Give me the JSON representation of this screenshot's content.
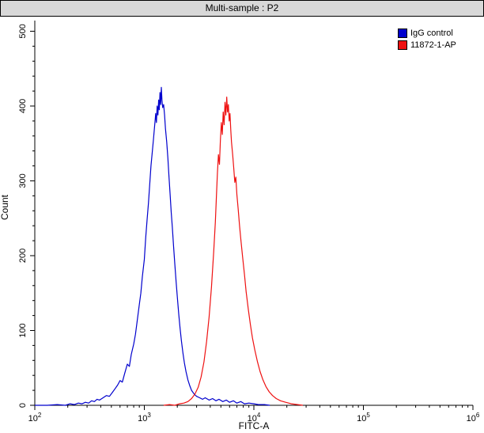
{
  "window": {
    "title": "Multi-sample : P2"
  },
  "chart_data": {
    "type": "line",
    "subtype": "flow-cytometry-histogram",
    "title": "Multi-sample : P2",
    "xlabel": "FITC-A",
    "ylabel": "Count",
    "x_scale": "log",
    "xlim": [
      100,
      1000000
    ],
    "ylim": [
      0,
      510
    ],
    "y_ticks": [
      0,
      100,
      200,
      300,
      400,
      500
    ],
    "y_minor_step": 20,
    "x_tick_exponents": [
      2,
      3,
      4,
      5,
      6
    ],
    "grid": "off",
    "legend_position": "top-right-inside",
    "axis_color": "#000000",
    "series": [
      {
        "name": "IgG control",
        "color": "#0000cd",
        "points": [
          [
            100,
            0
          ],
          [
            130,
            0
          ],
          [
            160,
            1
          ],
          [
            190,
            0
          ],
          [
            210,
            2
          ],
          [
            230,
            1
          ],
          [
            250,
            3
          ],
          [
            270,
            2
          ],
          [
            290,
            4
          ],
          [
            310,
            3
          ],
          [
            330,
            6
          ],
          [
            350,
            5
          ],
          [
            370,
            8
          ],
          [
            390,
            7
          ],
          [
            420,
            10
          ],
          [
            450,
            13
          ],
          [
            480,
            12
          ],
          [
            510,
            17
          ],
          [
            540,
            22
          ],
          [
            570,
            27
          ],
          [
            600,
            33
          ],
          [
            630,
            31
          ],
          [
            660,
            42
          ],
          [
            700,
            55
          ],
          [
            730,
            52
          ],
          [
            760,
            68
          ],
          [
            800,
            82
          ],
          [
            830,
            95
          ],
          [
            860,
            112
          ],
          [
            900,
            135
          ],
          [
            930,
            150
          ],
          [
            960,
            172
          ],
          [
            1000,
            195
          ],
          [
            1030,
            225
          ],
          [
            1060,
            248
          ],
          [
            1090,
            270
          ],
          [
            1120,
            295
          ],
          [
            1150,
            320
          ],
          [
            1180,
            338
          ],
          [
            1210,
            355
          ],
          [
            1240,
            372
          ],
          [
            1270,
            390
          ],
          [
            1290,
            378
          ],
          [
            1310,
            400
          ],
          [
            1330,
            388
          ],
          [
            1350,
            408
          ],
          [
            1370,
            395
          ],
          [
            1390,
            418
          ],
          [
            1410,
            402
          ],
          [
            1430,
            425
          ],
          [
            1450,
            408
          ],
          [
            1470,
            398
          ],
          [
            1500,
            402
          ],
          [
            1530,
            388
          ],
          [
            1560,
            370
          ],
          [
            1600,
            352
          ],
          [
            1640,
            330
          ],
          [
            1680,
            305
          ],
          [
            1720,
            282
          ],
          [
            1760,
            258
          ],
          [
            1800,
            238
          ],
          [
            1850,
            212
          ],
          [
            1900,
            188
          ],
          [
            1950,
            165
          ],
          [
            2000,
            145
          ],
          [
            2060,
            122
          ],
          [
            2120,
            103
          ],
          [
            2180,
            86
          ],
          [
            2250,
            70
          ],
          [
            2320,
            57
          ],
          [
            2400,
            45
          ],
          [
            2500,
            34
          ],
          [
            2600,
            26
          ],
          [
            2700,
            20
          ],
          [
            2850,
            15
          ],
          [
            3000,
            12
          ],
          [
            3200,
            10
          ],
          [
            3400,
            8
          ],
          [
            3600,
            10
          ],
          [
            3900,
            7
          ],
          [
            4200,
            9
          ],
          [
            4500,
            6
          ],
          [
            4800,
            8
          ],
          [
            5200,
            5
          ],
          [
            5600,
            7
          ],
          [
            6000,
            4
          ],
          [
            6500,
            6
          ],
          [
            7000,
            3
          ],
          [
            7600,
            5
          ],
          [
            8200,
            2
          ],
          [
            9000,
            3
          ],
          [
            10000,
            2
          ],
          [
            11000,
            1
          ],
          [
            12500,
            1
          ],
          [
            14000,
            0
          ]
        ]
      },
      {
        "name": "11872-1-AP",
        "color": "#ee1111",
        "points": [
          [
            1500,
            0
          ],
          [
            1700,
            1
          ],
          [
            1900,
            0
          ],
          [
            2100,
            2
          ],
          [
            2300,
            3
          ],
          [
            2500,
            5
          ],
          [
            2700,
            9
          ],
          [
            2900,
            15
          ],
          [
            3100,
            24
          ],
          [
            3300,
            38
          ],
          [
            3500,
            58
          ],
          [
            3700,
            85
          ],
          [
            3900,
            118
          ],
          [
            4100,
            158
          ],
          [
            4300,
            205
          ],
          [
            4450,
            245
          ],
          [
            4550,
            278
          ],
          [
            4650,
            310
          ],
          [
            4750,
            335
          ],
          [
            4850,
            322
          ],
          [
            4950,
            355
          ],
          [
            5050,
            378
          ],
          [
            5150,
            362
          ],
          [
            5250,
            392
          ],
          [
            5350,
            375
          ],
          [
            5450,
            405
          ],
          [
            5550,
            388
          ],
          [
            5650,
            412
          ],
          [
            5750,
            392
          ],
          [
            5850,
            402
          ],
          [
            5950,
            380
          ],
          [
            6050,
            390
          ],
          [
            6150,
            368
          ],
          [
            6250,
            352
          ],
          [
            6400,
            335
          ],
          [
            6550,
            318
          ],
          [
            6700,
            298
          ],
          [
            6850,
            305
          ],
          [
            7000,
            282
          ],
          [
            7200,
            262
          ],
          [
            7400,
            240
          ],
          [
            7600,
            222
          ],
          [
            7900,
            198
          ],
          [
            8200,
            175
          ],
          [
            8500,
            152
          ],
          [
            8900,
            128
          ],
          [
            9300,
            108
          ],
          [
            9700,
            90
          ],
          [
            10200,
            74
          ],
          [
            10800,
            58
          ],
          [
            11400,
            45
          ],
          [
            12100,
            34
          ],
          [
            12900,
            25
          ],
          [
            13800,
            18
          ],
          [
            14800,
            13
          ],
          [
            16000,
            9
          ],
          [
            17500,
            6
          ],
          [
            19500,
            4
          ],
          [
            22000,
            2
          ],
          [
            25000,
            1
          ],
          [
            28000,
            0
          ]
        ]
      }
    ]
  }
}
